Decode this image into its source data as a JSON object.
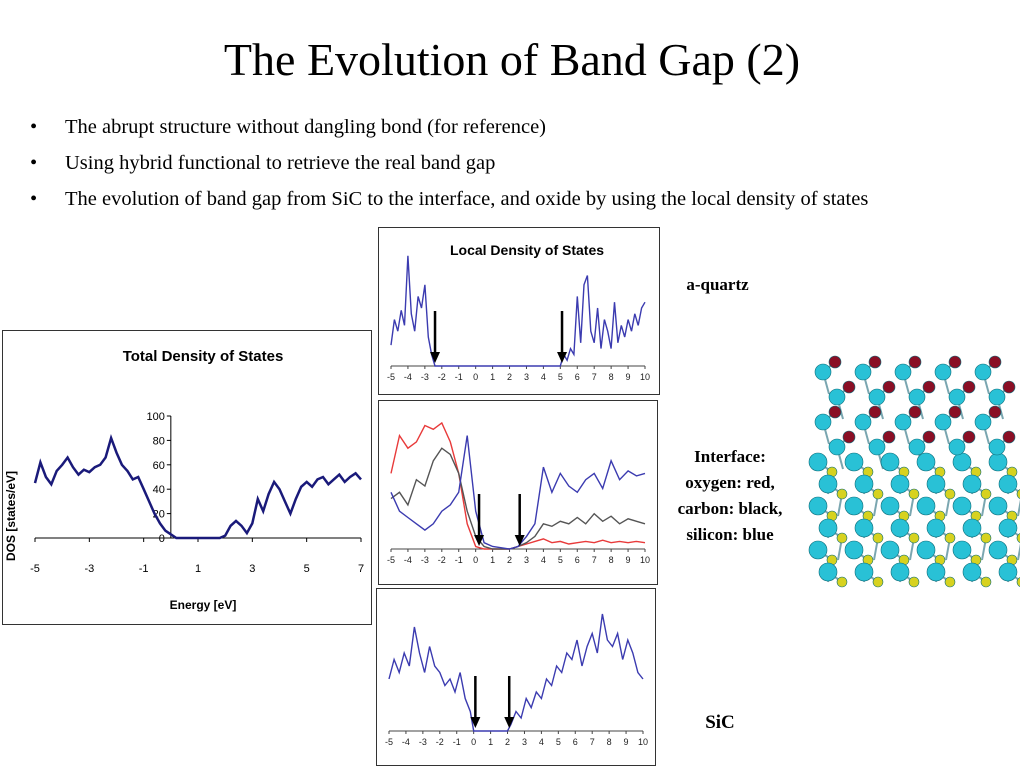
{
  "slide": {
    "title": "The Evolution of Band Gap (2)",
    "bullets": [
      "The abrupt structure without dangling bond (for reference)",
      "Using hybrid functional to retrieve the real band gap",
      "The evolution of band gap from SiC to the interface, and oxide by using the local density of states"
    ],
    "labels": {
      "quartz": "a-quartz",
      "interface": [
        "Interface:",
        "oxygen: red,",
        "carbon: black,",
        "silicon: blue"
      ],
      "sic": "SiC"
    }
  },
  "colors": {
    "dos_line": "#1a1a7a",
    "blue": "#3b3bb0",
    "red": "#e83a3a",
    "black": "#555555"
  },
  "chart_data": [
    {
      "type": "line",
      "title": "Total Density of States",
      "xlabel": "Energy [eV]",
      "ylabel": "DOS [states/eV]",
      "xlim": [
        -5,
        7
      ],
      "ylim": [
        0,
        100
      ],
      "xticks": [
        "-5",
        "-3",
        "-1",
        "1",
        "3",
        "5",
        "7"
      ],
      "yticks": [
        "0",
        "20",
        "40",
        "60",
        "80",
        "100"
      ],
      "series": [
        {
          "x": [
            -5,
            -4.8,
            -4.6,
            -4.4,
            -4.2,
            -4,
            -3.8,
            -3.6,
            -3.4,
            -3.2,
            -3,
            -2.8,
            -2.6,
            -2.4,
            -2.2,
            -2,
            -1.8,
            -1.6,
            -1.4,
            -1.2,
            -1,
            -0.8,
            -0.6,
            -0.4,
            -0.2,
            0,
            0.2,
            0.4,
            0.6,
            0.8,
            1,
            1.2,
            1.4,
            1.6,
            1.8,
            2,
            2.2,
            2.4,
            2.6,
            2.8,
            3,
            3.2,
            3.4,
            3.6,
            3.8,
            4,
            4.2,
            4.4,
            4.6,
            4.8,
            5,
            5.2,
            5.4,
            5.6,
            5.8,
            6,
            6.2,
            6.4,
            6.6,
            6.8,
            7
          ],
          "y": [
            45,
            62,
            50,
            44,
            55,
            60,
            66,
            58,
            52,
            56,
            54,
            58,
            60,
            66,
            82,
            70,
            60,
            55,
            48,
            50,
            40,
            30,
            20,
            12,
            6,
            3,
            0,
            0,
            0,
            0,
            0,
            0,
            0,
            0,
            0,
            2,
            10,
            14,
            10,
            4,
            12,
            32,
            22,
            36,
            46,
            40,
            30,
            20,
            32,
            42,
            46,
            42,
            48,
            50,
            44,
            48,
            52,
            46,
            50,
            53,
            48
          ]
        }
      ]
    },
    {
      "type": "line",
      "title": "Local Density of States",
      "xlim": [
        -5,
        10
      ],
      "xticks": [
        "-5",
        "-4",
        "-3",
        "-2",
        "-1",
        "0",
        "1",
        "2",
        "3",
        "4",
        "5",
        "6",
        "7",
        "8",
        "9",
        "10"
      ],
      "series": [
        {
          "x": [
            -5,
            -4.8,
            -4.6,
            -4.4,
            -4.2,
            -4,
            -3.8,
            -3.6,
            -3.4,
            -3.2,
            -3,
            -2.8,
            -2.6,
            -2.4,
            -2.2,
            -2,
            5,
            5.2,
            5.4,
            5.6,
            5.8,
            6,
            6.2,
            6.4,
            6.6,
            6.8,
            7,
            7.2,
            7.4,
            7.6,
            7.8,
            8,
            8.2,
            8.4,
            8.6,
            8.8,
            9,
            9.2,
            9.4,
            9.6,
            9.8,
            10
          ],
          "y": [
            18,
            40,
            30,
            48,
            35,
            95,
            45,
            30,
            60,
            50,
            70,
            25,
            10,
            0,
            0,
            0,
            0,
            10,
            5,
            15,
            10,
            60,
            20,
            70,
            78,
            30,
            20,
            50,
            15,
            40,
            30,
            15,
            55,
            20,
            35,
            25,
            40,
            30,
            45,
            35,
            50,
            55
          ]
        }
      ]
    },
    {
      "type": "line",
      "xlim": [
        -5,
        10
      ],
      "xticks": [
        "-5",
        "-4",
        "-3",
        "-2",
        "-1",
        "0",
        "1",
        "2",
        "3",
        "4",
        "5",
        "6",
        "7",
        "8",
        "9",
        "10"
      ],
      "series": [
        {
          "x": [
            -5,
            -4.5,
            -4,
            -3.5,
            -3,
            -2.5,
            -2,
            -1.5,
            -1,
            -0.5,
            0,
            0.5,
            1,
            2,
            2.5,
            3,
            3.5,
            4,
            4.5,
            5,
            5.5,
            6,
            6.5,
            7,
            7.5,
            8,
            8.5,
            9,
            9.5,
            10
          ],
          "y": [
            60,
            90,
            80,
            85,
            98,
            95,
            100,
            85,
            60,
            20,
            2,
            0,
            0,
            0,
            2,
            4,
            6,
            8,
            5,
            6,
            4,
            5,
            6,
            5,
            7,
            5,
            6,
            5,
            6,
            5
          ]
        },
        {
          "x": [
            -5,
            -4.5,
            -4,
            -3.5,
            -3,
            -2.5,
            -2,
            -1.5,
            -1,
            -0.5,
            0,
            0.5,
            1,
            2,
            2.5,
            3,
            3.5,
            4,
            4.5,
            5,
            5.5,
            6,
            6.5,
            7,
            7.5,
            8,
            8.5,
            9,
            9.5,
            10
          ],
          "y": [
            40,
            45,
            35,
            55,
            50,
            70,
            80,
            75,
            60,
            30,
            10,
            2,
            0,
            0,
            2,
            5,
            10,
            20,
            18,
            22,
            20,
            25,
            20,
            28,
            22,
            26,
            20,
            24,
            22,
            20
          ]
        },
        {
          "x": [
            -5,
            -4.5,
            -4,
            -3.5,
            -3,
            -2.5,
            -2,
            -1.5,
            -1,
            -0.5,
            0,
            0.5,
            1,
            2,
            2.5,
            3,
            3.5,
            4,
            4.5,
            5,
            5.5,
            6,
            6.5,
            7,
            7.5,
            8,
            8.5,
            9,
            9.5,
            10
          ],
          "y": [
            45,
            30,
            25,
            20,
            15,
            20,
            30,
            35,
            45,
            90,
            30,
            5,
            2,
            0,
            2,
            10,
            20,
            65,
            45,
            60,
            50,
            45,
            55,
            60,
            48,
            70,
            55,
            62,
            58,
            60
          ]
        }
      ]
    },
    {
      "type": "line",
      "xlim": [
        -5,
        10
      ],
      "xticks": [
        "-5",
        "-4",
        "-3",
        "-2",
        "-1",
        "0",
        "1",
        "2",
        "3",
        "4",
        "5",
        "6",
        "7",
        "8",
        "9",
        "10"
      ],
      "series": [
        {
          "x": [
            -5,
            -4.7,
            -4.4,
            -4.1,
            -3.8,
            -3.5,
            -3.2,
            -2.9,
            -2.6,
            -2.3,
            -2,
            -1.7,
            -1.4,
            -1.1,
            -0.8,
            -0.5,
            -0.2,
            0,
            0.2,
            0.5,
            1,
            1.5,
            2,
            2.2,
            2.5,
            2.8,
            3.1,
            3.4,
            3.7,
            4,
            4.3,
            4.6,
            4.9,
            5.2,
            5.5,
            5.8,
            6.1,
            6.4,
            6.7,
            7,
            7.3,
            7.6,
            7.9,
            8.2,
            8.5,
            8.8,
            9.1,
            9.4,
            9.7,
            10
          ],
          "y": [
            40,
            55,
            45,
            60,
            50,
            80,
            60,
            45,
            65,
            50,
            45,
            35,
            40,
            30,
            45,
            25,
            15,
            0,
            0,
            0,
            0,
            0,
            0,
            5,
            15,
            10,
            25,
            18,
            30,
            25,
            40,
            35,
            50,
            45,
            60,
            55,
            70,
            50,
            65,
            75,
            60,
            90,
            70,
            65,
            75,
            55,
            70,
            60,
            45,
            40
          ]
        }
      ]
    }
  ]
}
